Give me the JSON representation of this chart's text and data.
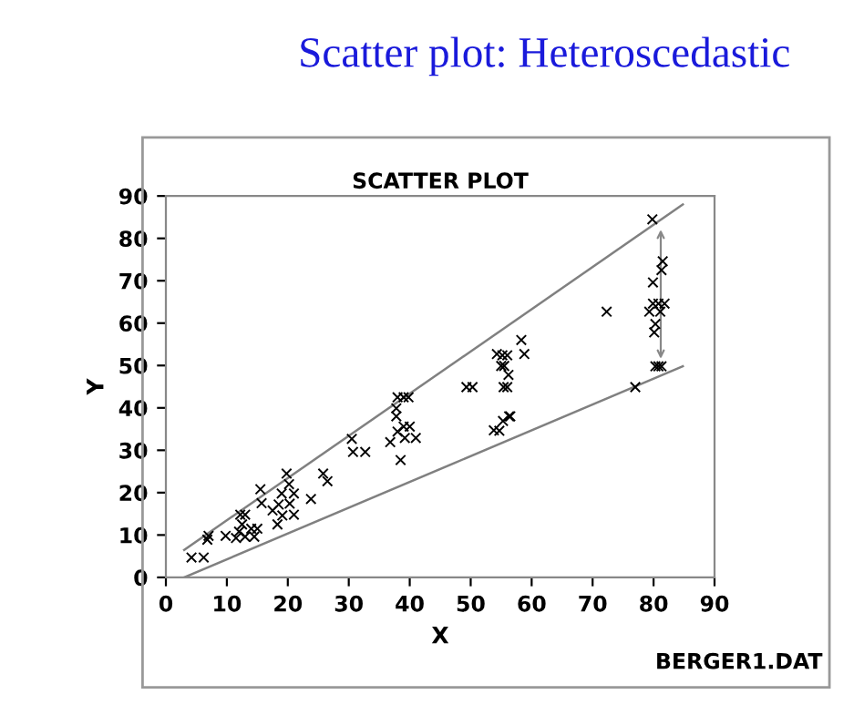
{
  "chart_data": {
    "type": "scatter",
    "title": "SCATTER PLOT",
    "subtitle": "Scatter plot: Heteroscedastic",
    "xlabel": "X",
    "ylabel": "Y",
    "annotations": [
      "BERGER1.DAT"
    ],
    "xlim": [
      0,
      90
    ],
    "ylim": [
      0,
      90
    ],
    "xticks": [
      0,
      10,
      20,
      30,
      40,
      50,
      60,
      70,
      80,
      90
    ],
    "yticks": [
      0,
      10,
      20,
      30,
      40,
      50,
      60,
      70,
      80,
      90
    ],
    "grid": false,
    "legend": false,
    "series": [
      {
        "marker": "cross",
        "color": "#000000",
        "x": [
          4.2,
          6.2,
          6.8,
          7,
          9.8,
          11.5,
          12,
          13,
          12.2,
          13,
          12.5,
          14,
          15,
          14.5,
          15.5,
          15.7,
          17.5,
          18.5,
          19,
          19.8,
          20.2,
          21,
          20.3,
          19.1,
          21,
          18.3,
          23.8,
          25.8,
          26.5,
          30.5,
          30.7,
          32.7,
          36.8,
          38,
          39,
          39.8,
          37.8,
          37.8,
          38,
          39,
          40,
          39.2,
          41,
          38.5,
          49.3,
          50.3,
          55.2,
          56,
          55,
          55.5,
          55.4,
          56,
          56.2,
          54.7,
          56.5,
          53.8,
          55.3,
          56.3,
          54.3,
          58.3,
          58.8,
          72.3,
          77,
          79.8,
          81.5,
          81.3,
          79.9,
          79.9,
          80.8,
          81.8,
          79.3,
          81.1,
          80.3,
          80.1,
          80.3,
          80.8,
          81.3
        ],
        "values": [
          4.7,
          4.7,
          8.9,
          9.8,
          9.8,
          9.3,
          10.8,
          9.6,
          14.8,
          14.8,
          12.5,
          11.5,
          11.5,
          9.6,
          20.8,
          17.5,
          15.8,
          17.2,
          19.8,
          24.5,
          22,
          19.8,
          17.4,
          14.6,
          14.8,
          12.5,
          18.5,
          24.5,
          22.7,
          32.7,
          29.6,
          29.6,
          31.9,
          42.5,
          42.5,
          42.5,
          39.9,
          38,
          34.4,
          35.6,
          35.6,
          32.9,
          32.9,
          27.7,
          44.9,
          44.9,
          52.4,
          52.4,
          49.9,
          49.9,
          44.9,
          44.9,
          47.8,
          34.6,
          38,
          34.7,
          36.9,
          38,
          52.7,
          56,
          52.7,
          62.7,
          44.9,
          84.5,
          74.6,
          72.5,
          69.6,
          64.6,
          64.6,
          64.6,
          62.7,
          62.7,
          59.8,
          57.8,
          49.8,
          49.8,
          49.8
        ]
      },
      {
        "type": "line",
        "color": "#808080",
        "x": [
          3,
          84.8
        ],
        "values": [
          6.5,
          88
        ]
      },
      {
        "type": "line",
        "color": "#808080",
        "x": [
          3,
          84.8
        ],
        "values": [
          0,
          49.8
        ]
      }
    ]
  }
}
